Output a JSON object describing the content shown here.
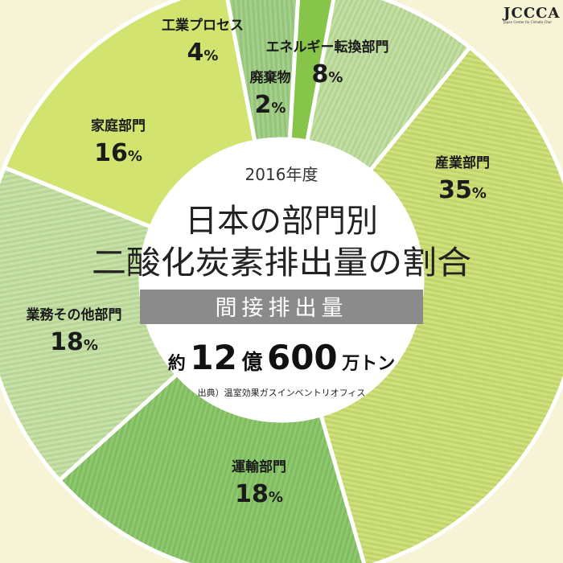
{
  "logo": {
    "text": "JCCCA",
    "subtitle": "Japan Center for Climate Change Actions"
  },
  "center": {
    "year": "2016年度",
    "title_line1": "日本の部門別",
    "title_line2": "二酸化炭素排出量の割合",
    "band_label": "間接排出量",
    "total_prefix": "約",
    "total_number1": "12",
    "total_unit1": "億",
    "total_number2": "600",
    "total_unit2": "万トン",
    "source": "出典）温室効果ガスインベントリオフィス"
  },
  "chart_data": {
    "type": "pie",
    "title": "日本の部門別 二酸化炭素排出量の割合",
    "subtitle": "2016年度 間接排出量",
    "total": "約12億600万トン",
    "unit": "%",
    "slices": [
      {
        "label": "エネルギー転換部門",
        "value": 8,
        "color": "#c3e0a3",
        "style": "stripe"
      },
      {
        "label": "産業部門",
        "value": 35,
        "color": "#cfe17a",
        "style": "stripe"
      },
      {
        "label": "運輸部門",
        "value": 18,
        "color": "#8fc96f",
        "style": "stripe"
      },
      {
        "label": "業務その他部門",
        "value": 18,
        "color": "#c7e2a6",
        "style": "stripe"
      },
      {
        "label": "家庭部門",
        "value": 16,
        "color": "#d2e36f",
        "style": "solid"
      },
      {
        "label": "工業プロセス",
        "value": 4,
        "color": "#a3d18a",
        "style": "stripe"
      },
      {
        "label": "廃棄物",
        "value": 2,
        "color": "#86c44a",
        "style": "solid"
      }
    ]
  }
}
